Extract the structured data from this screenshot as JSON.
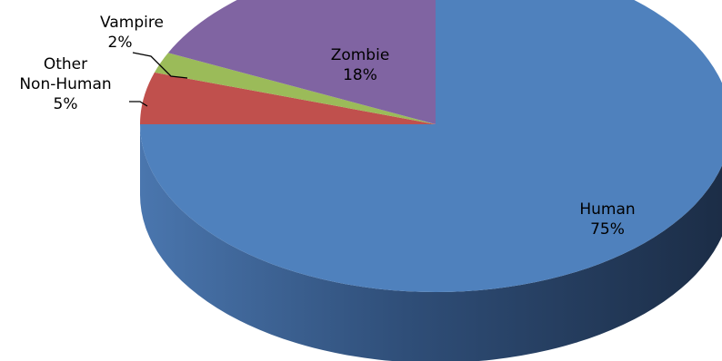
{
  "chart_data": {
    "type": "pie",
    "style": "3d",
    "title": "",
    "slices": [
      {
        "name": "Human",
        "value": 75,
        "label": "75%",
        "color": "#4F81BD"
      },
      {
        "name": "Other Non-Human",
        "name_lines": [
          "Other",
          "Non-Human"
        ],
        "value": 5,
        "label": "5%",
        "color": "#C0504D"
      },
      {
        "name": "Vampire",
        "value": 2,
        "label": "2%",
        "color": "#9BBB59"
      },
      {
        "name": "Zombie",
        "value": 18,
        "label": "18%",
        "color": "#8064A2"
      }
    ]
  }
}
